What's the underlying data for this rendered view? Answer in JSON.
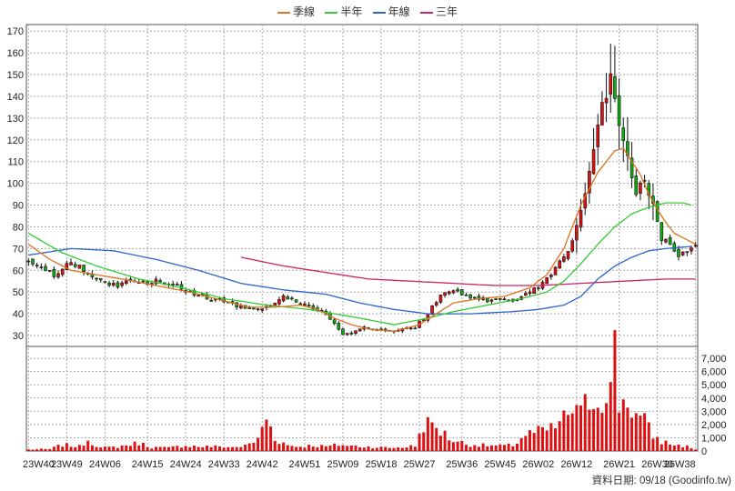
{
  "chart_data": {
    "type": "candlestick",
    "legend": [
      {
        "name": "季線",
        "color": "#e07020"
      },
      {
        "name": "半年",
        "color": "#33cc33"
      },
      {
        "name": "年線",
        "color": "#2a64cc"
      },
      {
        "name": "三年",
        "color": "#cc2266"
      }
    ],
    "x_ticks": [
      "23W40",
      "23W49",
      "24W06",
      "24W15",
      "24W24",
      "24W33",
      "24W42",
      "24W51",
      "25W09",
      "25W18",
      "25W27",
      "25W36",
      "25W45",
      "26W02",
      "26W12",
      "26W21",
      "26W30",
      "26W38"
    ],
    "x_range": [
      0,
      157
    ],
    "price_axis": {
      "ticks": [
        30,
        40,
        50,
        60,
        70,
        80,
        90,
        100,
        110,
        120,
        130,
        140,
        150,
        160,
        170
      ],
      "range": [
        25,
        173
      ]
    },
    "volume_axis": {
      "ticks": [
        "0",
        "1,000",
        "2,000",
        "3,000",
        "4,000",
        "5,000",
        "6,000",
        "7,000"
      ],
      "range": [
        0,
        7900
      ]
    },
    "price_anchors": [
      [
        0,
        64
      ],
      [
        3,
        61
      ],
      [
        6,
        58
      ],
      [
        9,
        63
      ],
      [
        12,
        62
      ],
      [
        15,
        57
      ],
      [
        18,
        54
      ],
      [
        21,
        53
      ],
      [
        24,
        55
      ],
      [
        27,
        54
      ],
      [
        30,
        55
      ],
      [
        33,
        54
      ],
      [
        36,
        52
      ],
      [
        39,
        49
      ],
      [
        42,
        47
      ],
      [
        45,
        46
      ],
      [
        48,
        44
      ],
      [
        51,
        43
      ],
      [
        54,
        42
      ],
      [
        57,
        44
      ],
      [
        60,
        48
      ],
      [
        63,
        46
      ],
      [
        66,
        44
      ],
      [
        69,
        41
      ],
      [
        72,
        36
      ],
      [
        74,
        30
      ],
      [
        76,
        31
      ],
      [
        79,
        34
      ],
      [
        82,
        33
      ],
      [
        85,
        32
      ],
      [
        88,
        33
      ],
      [
        91,
        34
      ],
      [
        94,
        40
      ],
      [
        97,
        49
      ],
      [
        100,
        51
      ],
      [
        103,
        48
      ],
      [
        106,
        47
      ],
      [
        109,
        46
      ],
      [
        112,
        47
      ],
      [
        115,
        47
      ],
      [
        118,
        50
      ],
      [
        121,
        54
      ],
      [
        124,
        61
      ],
      [
        127,
        69
      ],
      [
        129,
        80
      ],
      [
        131,
        95
      ],
      [
        133,
        115
      ],
      [
        135,
        135
      ],
      [
        137,
        148
      ],
      [
        139,
        125
      ],
      [
        141,
        112
      ],
      [
        143,
        96
      ],
      [
        145,
        102
      ],
      [
        147,
        90
      ],
      [
        149,
        75
      ],
      [
        151,
        71
      ],
      [
        153,
        67
      ],
      [
        155,
        68
      ],
      [
        157,
        71
      ]
    ],
    "volume_anchors": [
      [
        0,
        120
      ],
      [
        5,
        150
      ],
      [
        8,
        500
      ],
      [
        12,
        350
      ],
      [
        14,
        900
      ],
      [
        17,
        250
      ],
      [
        20,
        300
      ],
      [
        23,
        450
      ],
      [
        26,
        650
      ],
      [
        29,
        300
      ],
      [
        33,
        250
      ],
      [
        37,
        450
      ],
      [
        40,
        350
      ],
      [
        45,
        350
      ],
      [
        48,
        300
      ],
      [
        51,
        400
      ],
      [
        54,
        900
      ],
      [
        56,
        2700
      ],
      [
        58,
        1000
      ],
      [
        61,
        450
      ],
      [
        64,
        350
      ],
      [
        67,
        450
      ],
      [
        70,
        350
      ],
      [
        73,
        500
      ],
      [
        76,
        400
      ],
      [
        79,
        350
      ],
      [
        82,
        300
      ],
      [
        85,
        250
      ],
      [
        88,
        300
      ],
      [
        91,
        400
      ],
      [
        93,
        2200
      ],
      [
        96,
        1900
      ],
      [
        99,
        1000
      ],
      [
        103,
        550
      ],
      [
        107,
        450
      ],
      [
        111,
        400
      ],
      [
        114,
        450
      ],
      [
        117,
        1300
      ],
      [
        120,
        1500
      ],
      [
        123,
        1700
      ],
      [
        126,
        2500
      ],
      [
        128,
        3400
      ],
      [
        130,
        2800
      ],
      [
        132,
        4300
      ],
      [
        134,
        3900
      ],
      [
        136,
        5200
      ],
      [
        137,
        4900
      ],
      [
        138,
        7800
      ],
      [
        139,
        3800
      ],
      [
        141,
        4100
      ],
      [
        143,
        2800
      ],
      [
        145,
        2300
      ],
      [
        147,
        1200
      ],
      [
        149,
        750
      ],
      [
        152,
        500
      ],
      [
        155,
        350
      ],
      [
        157,
        150
      ]
    ],
    "ma_quarter_anchors": [
      [
        0,
        72
      ],
      [
        5,
        65
      ],
      [
        10,
        60
      ],
      [
        16,
        58
      ],
      [
        22,
        56
      ],
      [
        30,
        53
      ],
      [
        38,
        50
      ],
      [
        46,
        46
      ],
      [
        52,
        43
      ],
      [
        58,
        43
      ],
      [
        64,
        44
      ],
      [
        68,
        42
      ],
      [
        72,
        38
      ],
      [
        76,
        35
      ],
      [
        80,
        33
      ],
      [
        86,
        32
      ],
      [
        92,
        35
      ],
      [
        96,
        40
      ],
      [
        100,
        45
      ],
      [
        106,
        47
      ],
      [
        112,
        48
      ],
      [
        118,
        52
      ],
      [
        122,
        58
      ],
      [
        126,
        70
      ],
      [
        130,
        90
      ],
      [
        134,
        105
      ],
      [
        138,
        115
      ],
      [
        140,
        116
      ],
      [
        142,
        110
      ],
      [
        144,
        104
      ],
      [
        146,
        95
      ],
      [
        148,
        88
      ],
      [
        150,
        82
      ],
      [
        152,
        77
      ],
      [
        155,
        74
      ],
      [
        157,
        72
      ]
    ],
    "ma_half_anchors": [
      [
        0,
        77
      ],
      [
        8,
        68
      ],
      [
        16,
        62
      ],
      [
        26,
        56
      ],
      [
        36,
        52
      ],
      [
        46,
        47
      ],
      [
        56,
        44
      ],
      [
        66,
        42
      ],
      [
        72,
        40
      ],
      [
        78,
        38
      ],
      [
        86,
        35
      ],
      [
        94,
        38
      ],
      [
        100,
        41
      ],
      [
        108,
        44
      ],
      [
        116,
        47
      ],
      [
        122,
        50
      ],
      [
        126,
        55
      ],
      [
        130,
        63
      ],
      [
        134,
        72
      ],
      [
        138,
        80
      ],
      [
        142,
        86
      ],
      [
        146,
        89
      ],
      [
        150,
        91
      ],
      [
        154,
        91
      ],
      [
        156,
        90
      ]
    ],
    "ma_year_anchors": [
      [
        0,
        67
      ],
      [
        10,
        70
      ],
      [
        20,
        69
      ],
      [
        30,
        65
      ],
      [
        40,
        60
      ],
      [
        50,
        54
      ],
      [
        60,
        51
      ],
      [
        70,
        49
      ],
      [
        78,
        45
      ],
      [
        86,
        42
      ],
      [
        94,
        40
      ],
      [
        104,
        40
      ],
      [
        114,
        41
      ],
      [
        120,
        42
      ],
      [
        126,
        44
      ],
      [
        130,
        48
      ],
      [
        134,
        56
      ],
      [
        138,
        62
      ],
      [
        142,
        66
      ],
      [
        146,
        69
      ],
      [
        150,
        70
      ],
      [
        156,
        71
      ]
    ],
    "ma_3year_anchors": [
      [
        50,
        66
      ],
      [
        60,
        62
      ],
      [
        70,
        59
      ],
      [
        80,
        56
      ],
      [
        90,
        55
      ],
      [
        100,
        54
      ],
      [
        110,
        53
      ],
      [
        120,
        53
      ],
      [
        130,
        54
      ],
      [
        140,
        55
      ],
      [
        150,
        56
      ],
      [
        157,
        56
      ]
    ]
  },
  "footer": {
    "label": "資料日期: 09/18",
    "source": "(Goodinfo.tw)"
  }
}
